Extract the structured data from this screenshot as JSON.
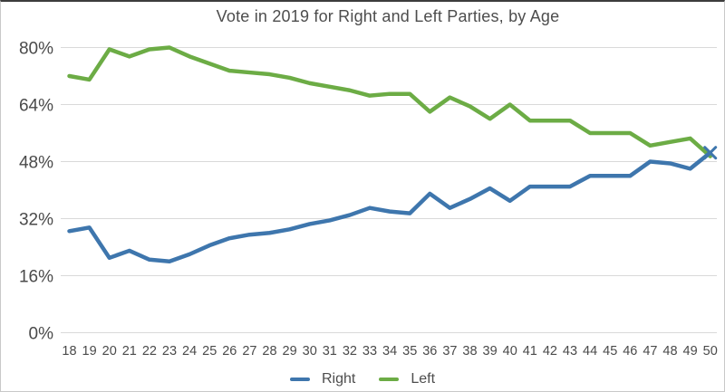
{
  "chart_data": {
    "type": "line",
    "title": "Vote in 2019 for Right and Left Parties, by Age",
    "xlabel": "",
    "ylabel": "",
    "x": [
      18,
      19,
      20,
      21,
      22,
      23,
      24,
      25,
      26,
      27,
      28,
      29,
      30,
      31,
      32,
      33,
      34,
      35,
      36,
      37,
      38,
      39,
      40,
      41,
      42,
      43,
      44,
      45,
      46,
      47,
      48,
      49,
      50
    ],
    "series": [
      {
        "name": "Right",
        "color": "#3E76AD",
        "end_marker": "x",
        "values": [
          28.5,
          29.5,
          21,
          23,
          20.5,
          20,
          22,
          24.5,
          26.5,
          27.5,
          28,
          29,
          30.5,
          31.5,
          33,
          35,
          34,
          33.5,
          39,
          35,
          37.5,
          40.5,
          37,
          41,
          41,
          41,
          44,
          44,
          44,
          48,
          47.5,
          46,
          50.5
        ]
      },
      {
        "name": "Left",
        "color": "#6CAC45",
        "end_marker": "",
        "values": [
          72,
          71,
          79.5,
          77.5,
          79.5,
          80,
          77.5,
          75.5,
          73.5,
          73,
          72.5,
          71.5,
          70,
          69,
          68,
          66.5,
          67,
          67,
          62,
          66,
          63.5,
          60,
          64,
          59.5,
          59.5,
          59.5,
          56,
          56,
          56,
          52.5,
          53.5,
          54.5,
          49.5
        ]
      }
    ],
    "yticks": [
      "0%",
      "16%",
      "32%",
      "48%",
      "64%",
      "80%"
    ],
    "ytick_values": [
      0,
      16,
      32,
      48,
      64,
      80
    ],
    "ylim": [
      0,
      84
    ],
    "grid": true,
    "legend_position": "bottom",
    "colors": {
      "grid": "#D9D9D9",
      "tick_text": "#4A4A4A",
      "title_text": "#4D4D4D"
    }
  }
}
